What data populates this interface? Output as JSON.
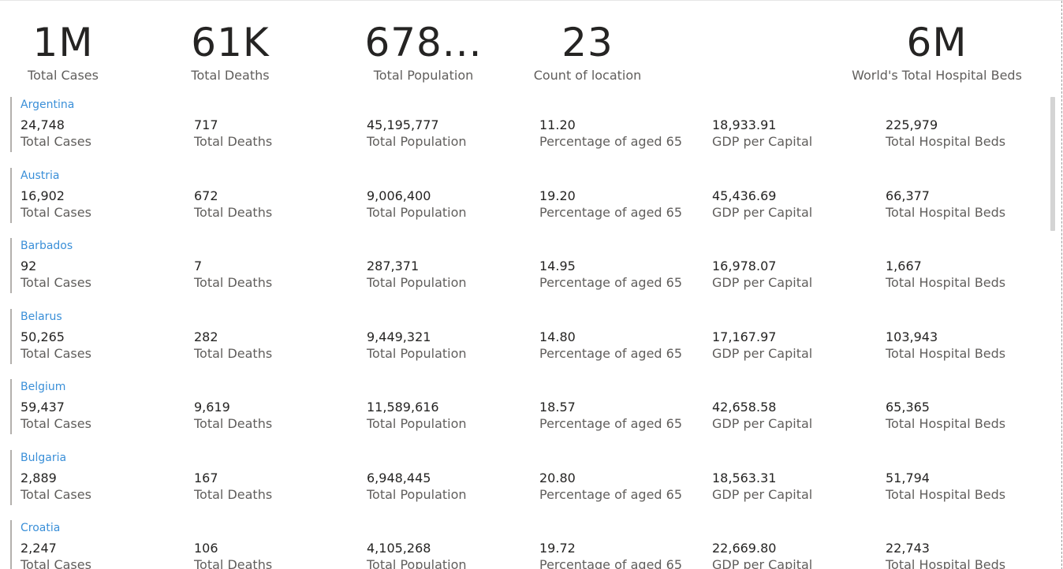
{
  "kpis": [
    {
      "value": "1M",
      "label": "Total Cases"
    },
    {
      "value": "61K",
      "label": "Total Deaths"
    },
    {
      "value": "678...",
      "label": "Total Population"
    },
    {
      "value": "23",
      "label": "Count of location"
    },
    {
      "value": "6M",
      "label": "World's Total Hospital Beds"
    }
  ],
  "field_labels": {
    "cases": "Total Cases",
    "deaths": "Total Deaths",
    "population": "Total Population",
    "aged65": "Percentage of aged 65",
    "gdp": "GDP per Capital",
    "beds": "Total Hospital Beds"
  },
  "rows": [
    {
      "country": "Argentina",
      "cases": "24,748",
      "deaths": "717",
      "population": "45,195,777",
      "aged65": "11.20",
      "gdp": "18,933.91",
      "beds": "225,979"
    },
    {
      "country": "Austria",
      "cases": "16,902",
      "deaths": "672",
      "population": "9,006,400",
      "aged65": "19.20",
      "gdp": "45,436.69",
      "beds": "66,377"
    },
    {
      "country": "Barbados",
      "cases": "92",
      "deaths": "7",
      "population": "287,371",
      "aged65": "14.95",
      "gdp": "16,978.07",
      "beds": "1,667"
    },
    {
      "country": "Belarus",
      "cases": "50,265",
      "deaths": "282",
      "population": "9,449,321",
      "aged65": "14.80",
      "gdp": "17,167.97",
      "beds": "103,943"
    },
    {
      "country": "Belgium",
      "cases": "59,437",
      "deaths": "9,619",
      "population": "11,589,616",
      "aged65": "18.57",
      "gdp": "42,658.58",
      "beds": "65,365"
    },
    {
      "country": "Bulgaria",
      "cases": "2,889",
      "deaths": "167",
      "population": "6,948,445",
      "aged65": "20.80",
      "gdp": "18,563.31",
      "beds": "51,794"
    },
    {
      "country": "Croatia",
      "cases": "2,247",
      "deaths": "106",
      "population": "4,105,268",
      "aged65": "19.72",
      "gdp": "22,669.80",
      "beds": "22,743"
    }
  ]
}
